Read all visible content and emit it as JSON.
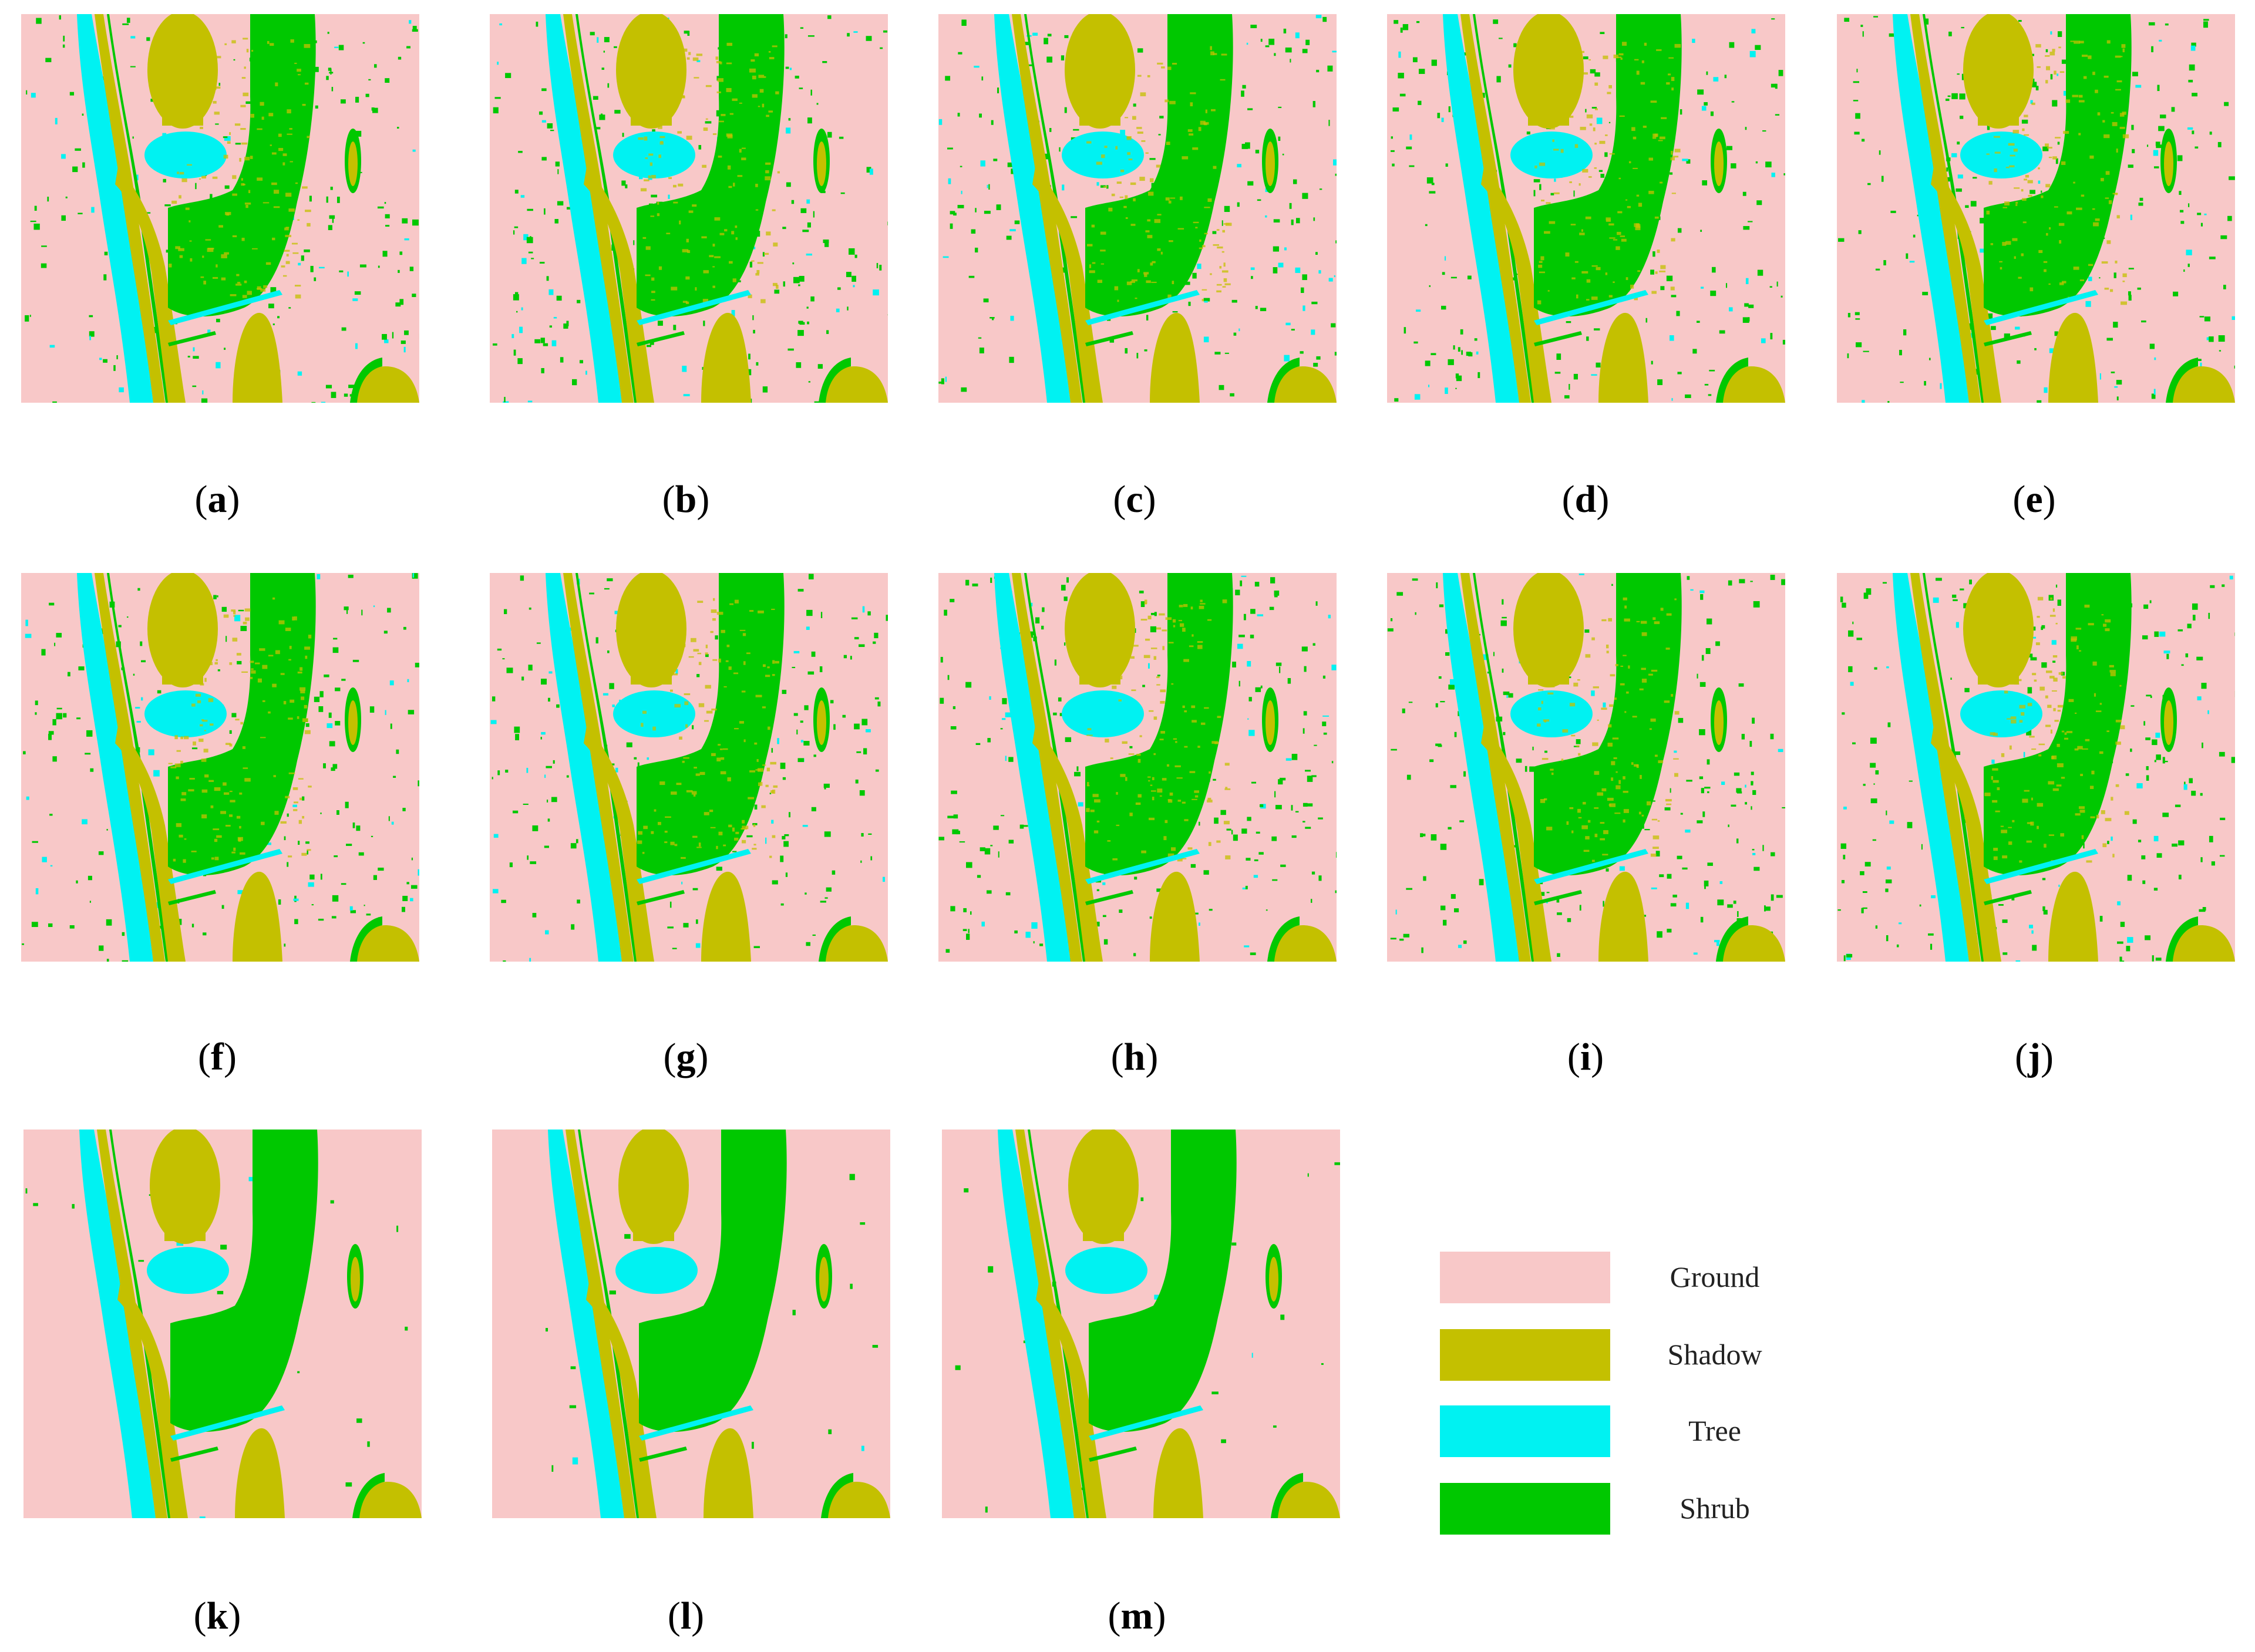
{
  "colors": {
    "ground": "#f8c8c8",
    "shadow": "#c4c000",
    "tree": "#00f2f2",
    "shrub": "#00c800"
  },
  "panels": [
    {
      "label": "a"
    },
    {
      "label": "b"
    },
    {
      "label": "c"
    },
    {
      "label": "d"
    },
    {
      "label": "e"
    },
    {
      "label": "f"
    },
    {
      "label": "g"
    },
    {
      "label": "h"
    },
    {
      "label": "i"
    },
    {
      "label": "j"
    },
    {
      "label": "k"
    },
    {
      "label": "l"
    },
    {
      "label": "m"
    }
  ],
  "legend": {
    "items": [
      {
        "label": "Ground",
        "color": "#f8c8c8"
      },
      {
        "label": "Shadow",
        "color": "#c4c000"
      },
      {
        "label": "Tree",
        "color": "#00f2f2"
      },
      {
        "label": "Shrub",
        "color": "#00c800"
      }
    ]
  }
}
